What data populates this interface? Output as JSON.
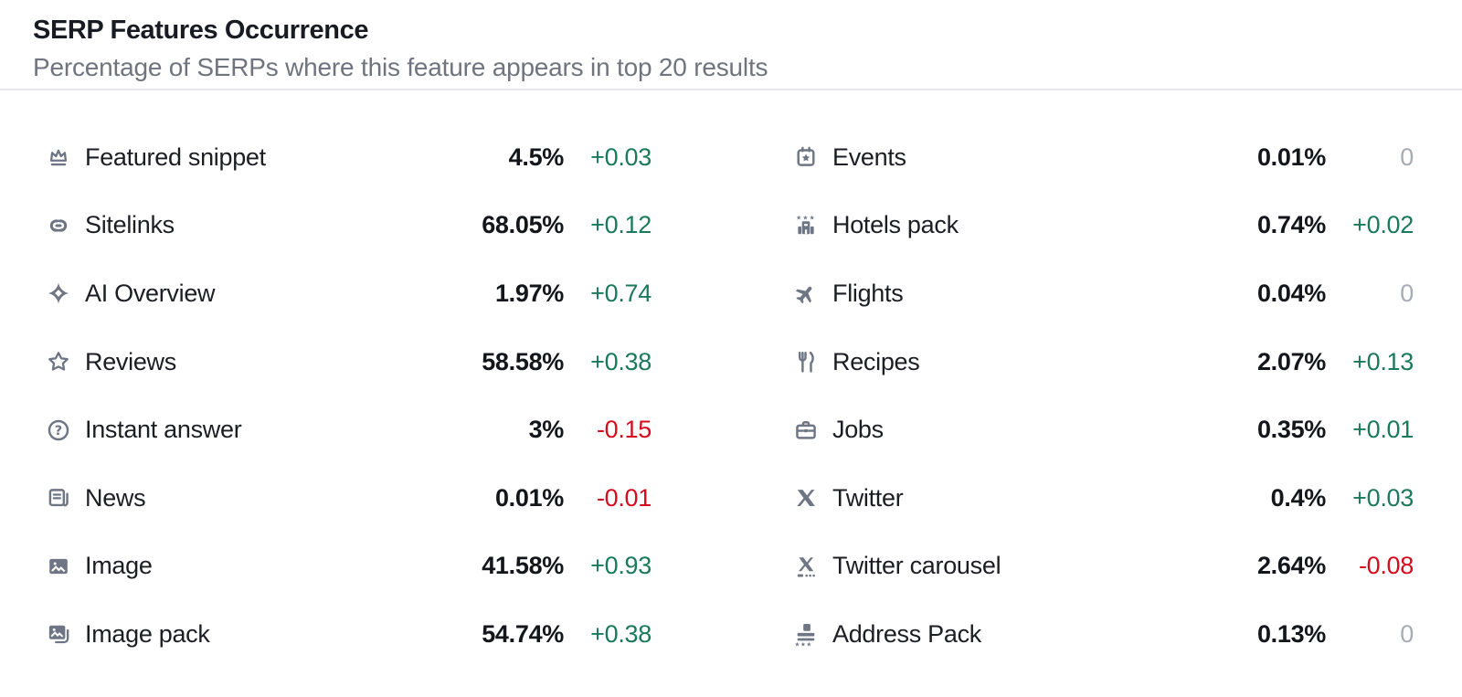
{
  "header": {
    "title": "SERP Features Occurrence",
    "subtitle": "Percentage of SERPs where this feature appears in top 20 results"
  },
  "colors": {
    "positive": "#1a7a5a",
    "negative": "#d50b1e",
    "neutral": "#a7abb4",
    "icon": "#6e7584",
    "title_text": "#191b22",
    "subtitle_text": "#70747f",
    "divider": "#e7e8ec"
  },
  "features": {
    "left": [
      {
        "icon": "featured-snippet",
        "label": "Featured snippet",
        "value": "4.5%",
        "change": "+0.03"
      },
      {
        "icon": "sitelinks",
        "label": "Sitelinks",
        "value": "68.05%",
        "change": "+0.12"
      },
      {
        "icon": "ai-overview",
        "label": "AI Overview",
        "value": "1.97%",
        "change": "+0.74"
      },
      {
        "icon": "reviews",
        "label": "Reviews",
        "value": "58.58%",
        "change": "+0.38"
      },
      {
        "icon": "instant-answer",
        "label": "Instant answer",
        "value": "3%",
        "change": "-0.15"
      },
      {
        "icon": "news",
        "label": "News",
        "value": "0.01%",
        "change": "-0.01"
      },
      {
        "icon": "image",
        "label": "Image",
        "value": "41.58%",
        "change": "+0.93"
      },
      {
        "icon": "image-pack",
        "label": "Image pack",
        "value": "54.74%",
        "change": "+0.38"
      }
    ],
    "right": [
      {
        "icon": "events",
        "label": "Events",
        "value": "0.01%",
        "change": "0"
      },
      {
        "icon": "hotels-pack",
        "label": "Hotels pack",
        "value": "0.74%",
        "change": "+0.02"
      },
      {
        "icon": "flights",
        "label": "Flights",
        "value": "0.04%",
        "change": "0"
      },
      {
        "icon": "recipes",
        "label": "Recipes",
        "value": "2.07%",
        "change": "+0.13"
      },
      {
        "icon": "jobs",
        "label": "Jobs",
        "value": "0.35%",
        "change": "+0.01"
      },
      {
        "icon": "twitter",
        "label": "Twitter",
        "value": "0.4%",
        "change": "+0.03"
      },
      {
        "icon": "twitter-carousel",
        "label": "Twitter carousel",
        "value": "2.64%",
        "change": "-0.08"
      },
      {
        "icon": "address-pack",
        "label": "Address Pack",
        "value": "0.13%",
        "change": "0"
      }
    ]
  }
}
